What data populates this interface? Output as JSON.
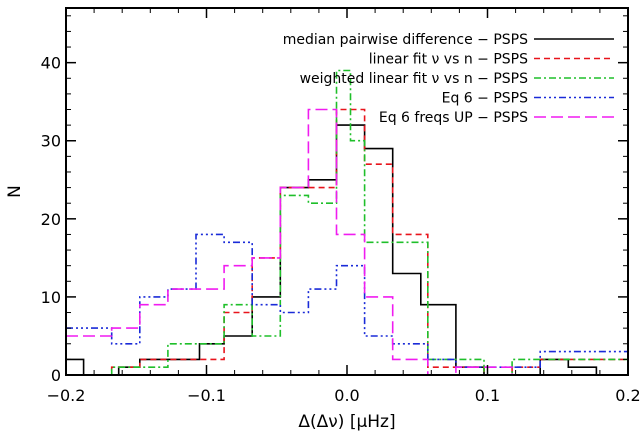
{
  "chart_data": {
    "type": "line",
    "subtype": "step-histogram",
    "title": "",
    "xlabel": "Δ(Δν) [μHz]",
    "ylabel": "N",
    "xlim": [
      -0.2,
      0.2
    ],
    "ylim": [
      0,
      47
    ],
    "x_ticks": [
      -0.2,
      -0.1,
      0.0,
      0.1,
      0.2
    ],
    "x_tick_labels": [
      "−0.2",
      "−0.1",
      "0.0",
      "0.1",
      "0.2"
    ],
    "y_ticks": [
      0,
      10,
      20,
      30,
      40
    ],
    "y_tick_labels": [
      "0",
      "10",
      "20",
      "30",
      "40"
    ],
    "grid": false,
    "legend_position": "top-right",
    "series": [
      {
        "name": "median pairwise difference − PSPS",
        "color": "#000000",
        "dash": "solid",
        "x": [
          -0.2,
          -0.1875,
          -0.1875,
          -0.1625,
          -0.1625,
          -0.1475,
          -0.1475,
          -0.1275,
          -0.1275,
          -0.105,
          -0.105,
          -0.0875,
          -0.0875,
          -0.0675,
          -0.0675,
          -0.0475,
          -0.0475,
          -0.0275,
          -0.0275,
          -0.0075,
          -0.0075,
          0.0125,
          0.0125,
          0.0325,
          0.0325,
          0.0525,
          0.0525,
          0.0775,
          0.0775,
          0.0975,
          0.0975,
          0.1375,
          0.1375,
          0.1575,
          0.1575,
          0.1775,
          0.1775,
          0.2
        ],
        "y": [
          2,
          2,
          0,
          0,
          1,
          1,
          2,
          2,
          2,
          2,
          4,
          4,
          5,
          5,
          10,
          10,
          24,
          24,
          25,
          25,
          32,
          32,
          29,
          29,
          13,
          13,
          9,
          9,
          1,
          1,
          0,
          0,
          2,
          2,
          1,
          1,
          0,
          0
        ]
      },
      {
        "name": "linear fit ν vs n − PSPS",
        "color": "#e8141c",
        "dash": "6,4",
        "x": [
          -0.2,
          -0.1675,
          -0.1675,
          -0.1475,
          -0.1475,
          -0.0875,
          -0.0875,
          -0.0675,
          -0.0675,
          -0.0475,
          -0.0475,
          -0.0275,
          -0.0275,
          -0.0075,
          -0.0075,
          0.0125,
          0.0125,
          0.0325,
          0.0325,
          0.0525,
          0.0525,
          0.0575,
          0.0575,
          0.0975,
          0.0975,
          0.1175,
          0.1175,
          0.1375,
          0.1375,
          0.2
        ],
        "y": [
          0,
          0,
          1,
          1,
          2,
          2,
          8,
          8,
          15,
          15,
          24,
          24,
          24,
          24,
          34,
          34,
          27,
          27,
          18,
          18,
          18,
          18,
          1,
          1,
          0,
          0,
          1,
          1,
          2,
          2
        ]
      },
      {
        "name": "weighted linear fit ν vs n − PSPS",
        "color": "#1fbf2a",
        "dash": "7,3,2,3",
        "x": [
          -0.2,
          -0.1675,
          -0.1675,
          -0.1275,
          -0.1275,
          -0.0875,
          -0.0875,
          -0.0675,
          -0.0675,
          -0.0475,
          -0.0475,
          -0.0275,
          -0.0275,
          -0.0075,
          -0.0075,
          0.0025,
          0.0025,
          0.0125,
          0.0125,
          0.0325,
          0.0325,
          0.0575,
          0.0575,
          0.0975,
          0.0975,
          0.1175,
          0.1175,
          0.2
        ],
        "y": [
          0,
          0,
          1,
          1,
          4,
          4,
          9,
          9,
          5,
          5,
          23,
          23,
          22,
          22,
          39,
          39,
          30,
          30,
          17,
          17,
          17,
          17,
          2,
          2,
          0,
          0,
          2,
          2
        ]
      },
      {
        "name": "Eq 6 − PSPS",
        "color": "#1a2bd8",
        "dash": "7,3,2,3,2,3,2,3",
        "x": [
          -0.2,
          -0.1675,
          -0.1675,
          -0.1475,
          -0.1475,
          -0.1275,
          -0.1275,
          -0.1075,
          -0.1075,
          -0.0875,
          -0.0875,
          -0.0675,
          -0.0675,
          -0.0475,
          -0.0475,
          -0.0275,
          -0.0275,
          -0.0075,
          -0.0075,
          0.0125,
          0.0125,
          0.0325,
          0.0325,
          0.0575,
          0.0575,
          0.0775,
          0.0775,
          0.1375,
          0.1375,
          0.2
        ],
        "y": [
          6,
          6,
          4,
          4,
          10,
          10,
          11,
          11,
          18,
          18,
          17,
          17,
          9,
          9,
          8,
          8,
          11,
          11,
          14,
          14,
          5,
          5,
          4,
          4,
          2,
          2,
          1,
          1,
          3,
          3
        ]
      },
      {
        "name": "Eq 6 freqs UP − PSPS",
        "color": "#f01cf0",
        "dash": "12,5",
        "x": [
          -0.2,
          -0.1675,
          -0.1675,
          -0.1475,
          -0.1475,
          -0.1275,
          -0.1275,
          -0.1075,
          -0.1075,
          -0.0875,
          -0.0875,
          -0.0675,
          -0.0675,
          -0.0475,
          -0.0475,
          -0.0275,
          -0.0275,
          -0.0075,
          -0.0075,
          0.0125,
          0.0125,
          0.0325,
          0.0325,
          0.0575,
          0.0575,
          0.0775,
          0.0775,
          0.1175,
          0.1175,
          0.2
        ],
        "y": [
          5,
          5,
          6,
          6,
          9,
          9,
          11,
          11,
          11,
          11,
          14,
          14,
          15,
          15,
          24,
          24,
          34,
          34,
          18,
          18,
          10,
          10,
          2,
          2,
          0,
          0,
          1,
          1,
          0,
          0
        ]
      }
    ]
  }
}
